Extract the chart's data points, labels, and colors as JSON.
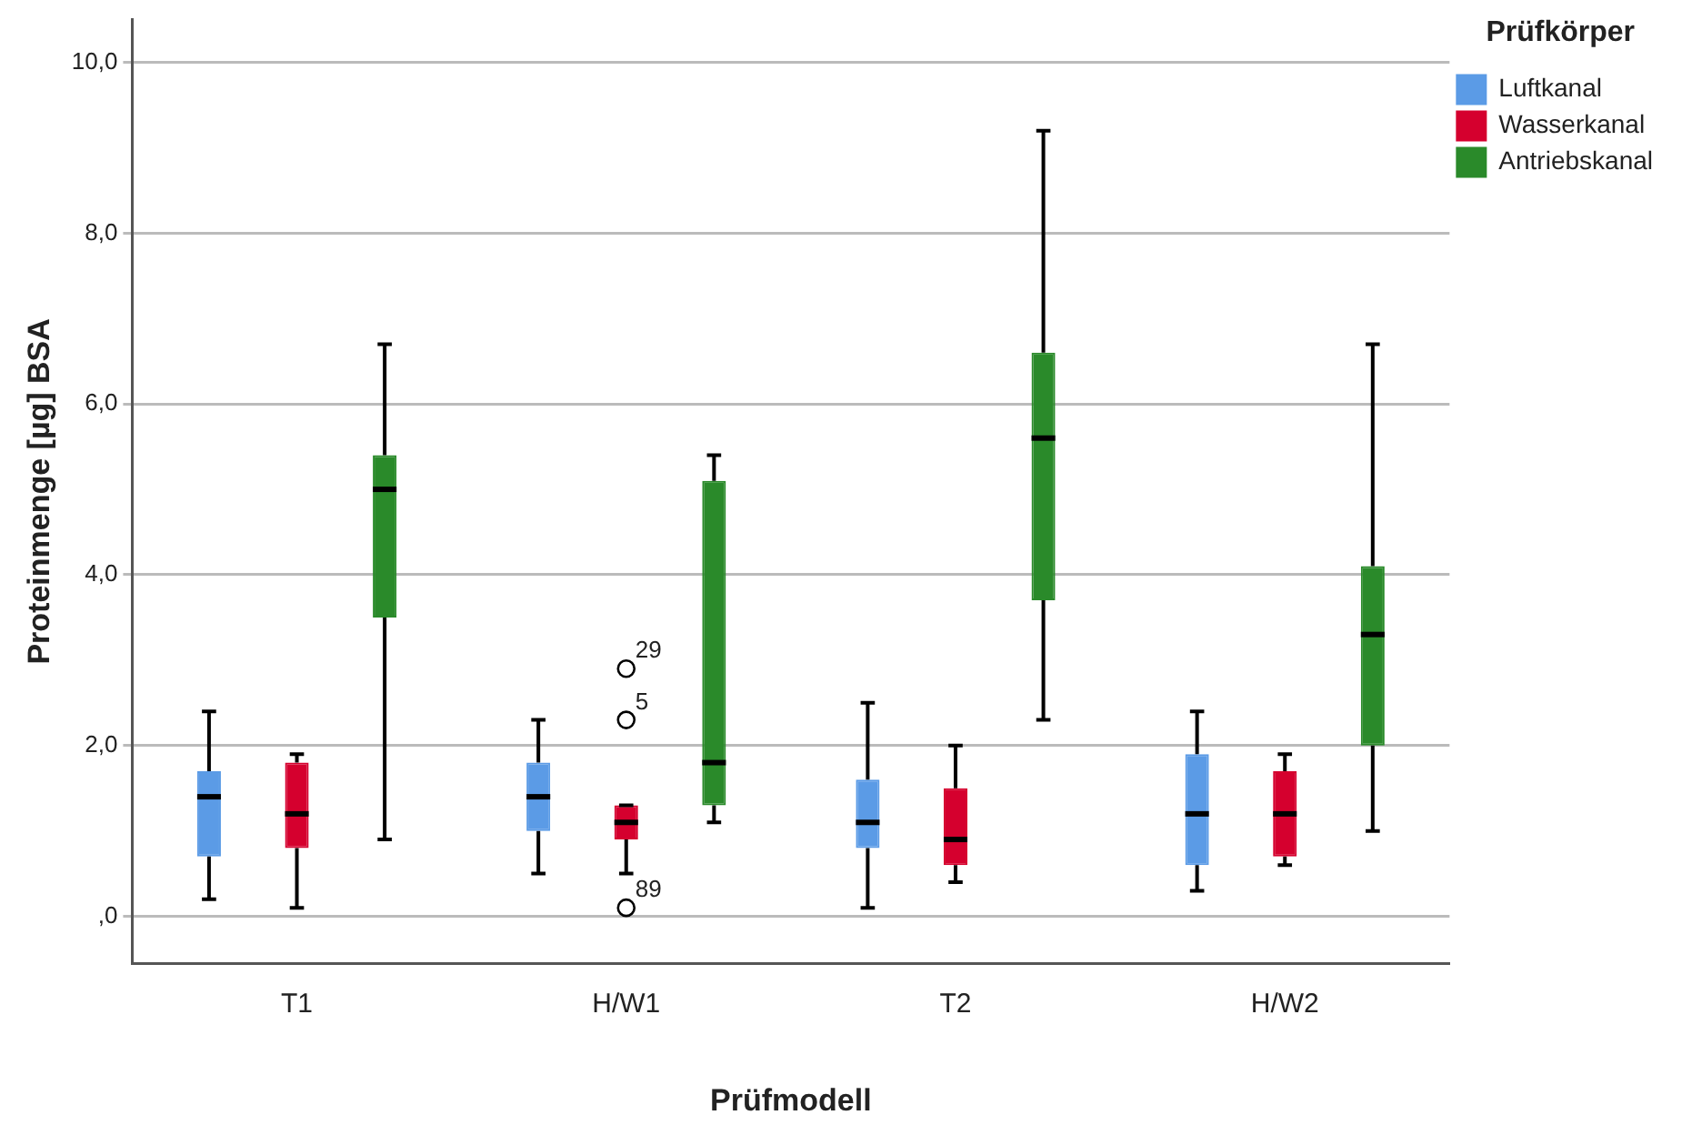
{
  "chart_data": {
    "type": "box",
    "xlabel": "Prüfmodell",
    "ylabel": "Proteinmenge [µg] BSA",
    "legend_title": "Prüfkörper",
    "legend": "top right",
    "grid": "y",
    "categories": [
      "T1",
      "H/W1",
      "T2",
      "H/W2"
    ],
    "ylim": [
      -0.55,
      10.5
    ],
    "yticks": [
      {
        "value": 0,
        "label": ",0"
      },
      {
        "value": 2,
        "label": "2,0"
      },
      {
        "value": 4,
        "label": "4,0"
      },
      {
        "value": 6,
        "label": "6,0"
      },
      {
        "value": 8,
        "label": "8,0"
      },
      {
        "value": 10,
        "label": "10,0"
      }
    ],
    "series": [
      {
        "name": "Luftkanal",
        "color": "#5b9be6",
        "boxes": [
          {
            "low": 0.2,
            "q1": 0.7,
            "median": 1.4,
            "q3": 1.7,
            "high": 2.4
          },
          {
            "low": 0.5,
            "q1": 1.0,
            "median": 1.4,
            "q3": 1.8,
            "high": 2.3
          },
          {
            "low": 0.1,
            "q1": 0.8,
            "median": 1.1,
            "q3": 1.6,
            "high": 2.5
          },
          {
            "low": 0.3,
            "q1": 0.6,
            "median": 1.2,
            "q3": 1.9,
            "high": 2.4
          }
        ]
      },
      {
        "name": "Wasserkanal",
        "color": "#d5002e",
        "boxes": [
          {
            "low": 0.1,
            "q1": 0.8,
            "median": 1.2,
            "q3": 1.8,
            "high": 1.9
          },
          {
            "low": 0.5,
            "q1": 0.9,
            "median": 1.1,
            "q3": 1.3,
            "high": 1.3,
            "outliers": [
              2.9,
              2.3,
              0.1
            ]
          },
          {
            "low": 0.4,
            "q1": 0.6,
            "median": 0.9,
            "q3": 1.5,
            "high": 2.0
          },
          {
            "low": 0.6,
            "q1": 0.7,
            "median": 1.2,
            "q3": 1.7,
            "high": 1.9
          }
        ]
      },
      {
        "name": "Antriebskanal",
        "color": "#2a8a2a",
        "boxes": [
          {
            "low": 0.9,
            "q1": 3.5,
            "median": 5.0,
            "q3": 5.4,
            "high": 6.7
          },
          {
            "low": 1.1,
            "q1": 1.3,
            "median": 1.8,
            "q3": 5.1,
            "high": 5.4
          },
          {
            "low": 2.3,
            "q1": 3.7,
            "median": 5.6,
            "q3": 6.6,
            "high": 9.2
          },
          {
            "low": 1.0,
            "q1": 2.0,
            "median": 3.3,
            "q3": 4.1,
            "high": 6.7
          }
        ]
      }
    ],
    "annotations": [
      "29",
      "5",
      "89"
    ]
  }
}
